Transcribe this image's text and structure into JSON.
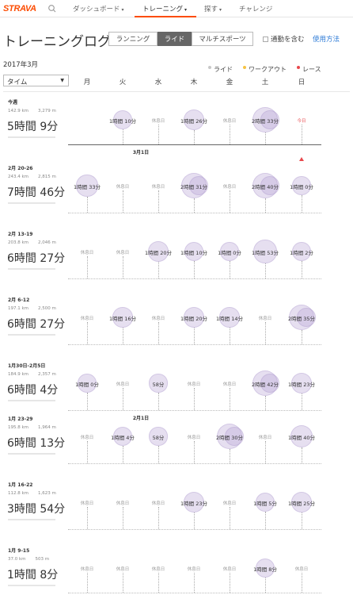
{
  "nav": {
    "logo": "STRAVA",
    "items": [
      "ダッシュボード",
      "トレーニング",
      "探す",
      "チャレンジ"
    ]
  },
  "page": {
    "title": "トレーニングログ",
    "tabs": [
      "ランニング",
      "ライド",
      "マルチスポーツ"
    ],
    "active_tab": "ライド",
    "commute_label": "通勤を含む",
    "usage_label": "使用方法",
    "month_label": "2017年3月",
    "metric_select": "タイム",
    "legend": [
      {
        "label": "ライド",
        "color": "#c8c8c8"
      },
      {
        "label": "ワークアウト",
        "color": "#f6c343"
      },
      {
        "label": "レース",
        "color": "#e8484c"
      }
    ],
    "days": [
      "月",
      "火",
      "水",
      "木",
      "金",
      "土",
      "日"
    ],
    "rest_label": "休息日",
    "today_label": "今日"
  },
  "weeks": [
    {
      "label": "今週",
      "distance": "142.9 km",
      "elevation": "3,279 m",
      "total": "5時間 9分",
      "days": [
        null,
        "1時間 10分",
        "rest",
        "1時間 26分",
        "rest",
        "2時間 33分",
        "today"
      ],
      "date_marker": {
        "text": "3月1日",
        "day": 2
      }
    },
    {
      "label": "2月 20-26",
      "distance": "243.4 km",
      "elevation": "2,815 m",
      "total": "7時間 46分",
      "days": [
        "1時間 33分",
        "rest",
        "rest",
        "2時間 31分",
        "rest",
        "2時間 40分",
        "1時間 0分"
      ]
    },
    {
      "label": "2月 13-19",
      "distance": "203.8 km",
      "elevation": "2,046 m",
      "total": "6時間 27分",
      "days": [
        "rest",
        "rest",
        "1時間 20分",
        "1時間 10分",
        "1時間 0分",
        "1時間 53分",
        "1時間 2分"
      ]
    },
    {
      "label": "2月 6-12",
      "distance": "197.1 km",
      "elevation": "2,500 m",
      "total": "6時間 27分",
      "days": [
        "rest",
        "1時間 16分",
        "rest",
        "1時間 20分",
        "1時間 14分",
        "rest",
        "2時間 35分"
      ]
    },
    {
      "label": "1月30日-2月5日",
      "distance": "184.9 km",
      "elevation": "2,357 m",
      "total": "6時間 4分",
      "days": [
        "1時間 0分",
        "rest",
        "58分",
        "rest",
        "rest",
        "2時間 42分",
        "1時間 23分"
      ],
      "date_marker": {
        "text": "2月1日",
        "day": 2
      }
    },
    {
      "label": "1月 23-29",
      "distance": "195.8 km",
      "elevation": "1,964 m",
      "total": "6時間 13分",
      "days": [
        "rest",
        "1時間 4分",
        "58分",
        "rest",
        "2時間 30分",
        "rest",
        "1時間 40分"
      ]
    },
    {
      "label": "1月 16-22",
      "distance": "112.8 km",
      "elevation": "1,623 m",
      "total": "3時間 54分",
      "days": [
        "rest",
        "rest",
        "rest",
        "1時間 23分",
        "rest",
        "1時間 5分",
        "1時間 25分"
      ]
    },
    {
      "label": "1月 9-15",
      "distance": "37.0 km",
      "elevation": "503 m",
      "total": "1時間 8分",
      "days": [
        "rest",
        "rest",
        "rest",
        "rest",
        "rest",
        "1時間 8分",
        "rest"
      ]
    }
  ]
}
